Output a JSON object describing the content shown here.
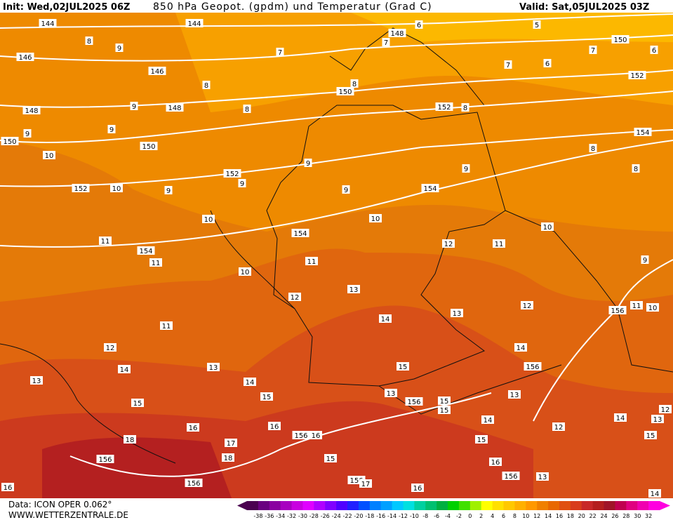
{
  "header": {
    "init": "Init: Wed,02JUL2025 06Z",
    "title": "850 hPa Geopot. (gpdm) und Temperatur (Grad C)",
    "valid": "Valid: Sat,05JUL2025 03Z"
  },
  "footer": {
    "data": "Data: ICON OPER 0.062°",
    "site": "WWW.WETTERZENTRALE.DE"
  },
  "colorbar": {
    "ticks": [
      -38,
      -36,
      -34,
      -32,
      -30,
      -28,
      -26,
      -24,
      -22,
      -20,
      -18,
      -16,
      -14,
      -12,
      -10,
      -8,
      -6,
      -4,
      -2,
      0,
      2,
      4,
      6,
      8,
      10,
      12,
      14,
      16,
      18,
      20,
      22,
      24,
      26,
      28,
      30,
      32
    ],
    "colors": [
      "#4b0050",
      "#6a0080",
      "#8a00a0",
      "#a800c0",
      "#c800e0",
      "#e000ff",
      "#b000ff",
      "#8000ff",
      "#5000ff",
      "#2020ff",
      "#0050ff",
      "#0080ff",
      "#00a0ff",
      "#00c8ff",
      "#00e0e0",
      "#00d0a0",
      "#00c070",
      "#00b040",
      "#00d000",
      "#40e000",
      "#a0f000",
      "#ffff00",
      "#ffe000",
      "#ffc800",
      "#ffb000",
      "#ff9800",
      "#f08000",
      "#e86800",
      "#e05010",
      "#d83c1c",
      "#c82828",
      "#b41e1e",
      "#a01428",
      "#c00050",
      "#e00080",
      "#f000b0",
      "#ff00e0"
    ]
  },
  "contour_labels": [
    "144",
    "144",
    "148",
    "5",
    "150",
    "146",
    "146",
    "150",
    "152",
    "148",
    "148",
    "152",
    "154",
    "150",
    "150",
    "10",
    "152",
    "152",
    "10",
    "154",
    "10",
    "10",
    "10",
    "154",
    "12",
    "11",
    "11",
    "154",
    "11",
    "10",
    "11",
    "9",
    "12",
    "13",
    "156",
    "11",
    "10",
    "12",
    "13",
    "14",
    "11",
    "12",
    "14",
    "14",
    "13",
    "15",
    "156",
    "13",
    "14",
    "15",
    "13",
    "13",
    "15",
    "156",
    "15",
    "15",
    "14",
    "12",
    "14",
    "13",
    "12",
    "16",
    "16",
    "156",
    "16",
    "15",
    "18",
    "17",
    "15",
    "18",
    "156",
    "15",
    "16",
    "156",
    "13",
    "156",
    "156",
    "17",
    "16",
    "16",
    "14"
  ],
  "isotherm_labels": [
    "8",
    "9",
    "7",
    "7",
    "6",
    "7",
    "6",
    "7",
    "6",
    "8",
    "8",
    "9",
    "8",
    "8",
    "9",
    "9",
    "8",
    "8",
    "9",
    "9",
    "9",
    "9",
    "9"
  ]
}
